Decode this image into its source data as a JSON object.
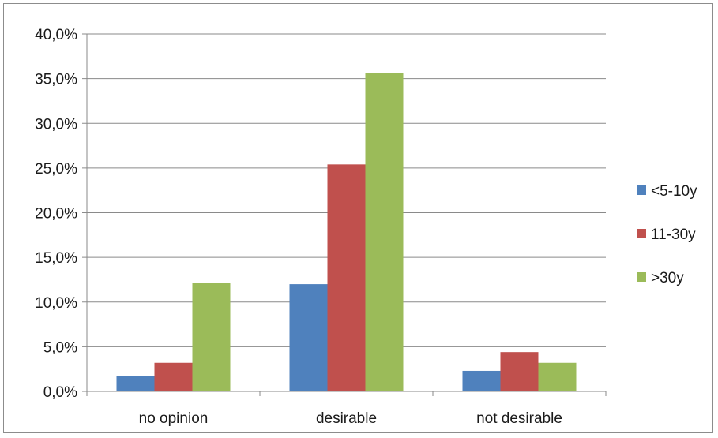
{
  "chart_data": {
    "type": "bar",
    "title": "",
    "xlabel": "",
    "ylabel": "",
    "categories": [
      "no opinion",
      "desirable",
      "not desirable"
    ],
    "series": [
      {
        "name": "<5-10y",
        "color": "#4f81bd",
        "values": [
          1.7,
          12.0,
          2.3
        ]
      },
      {
        "name": "11-30y",
        "color": "#c0504d",
        "values": [
          3.2,
          25.4,
          4.4
        ]
      },
      {
        "name": ">30y",
        "color": "#9bbb59",
        "values": [
          12.1,
          35.6,
          3.2
        ]
      }
    ],
    "ylim": [
      0,
      40
    ],
    "y_ticks": [
      "0,0%",
      "5,0%",
      "10,0%",
      "15,0%",
      "20,0%",
      "25,0%",
      "30,0%",
      "35,0%",
      "40,0%"
    ],
    "y_tick_values": [
      0,
      5,
      10,
      15,
      20,
      25,
      30,
      35,
      40
    ],
    "grid": true,
    "legend_position": "right"
  }
}
